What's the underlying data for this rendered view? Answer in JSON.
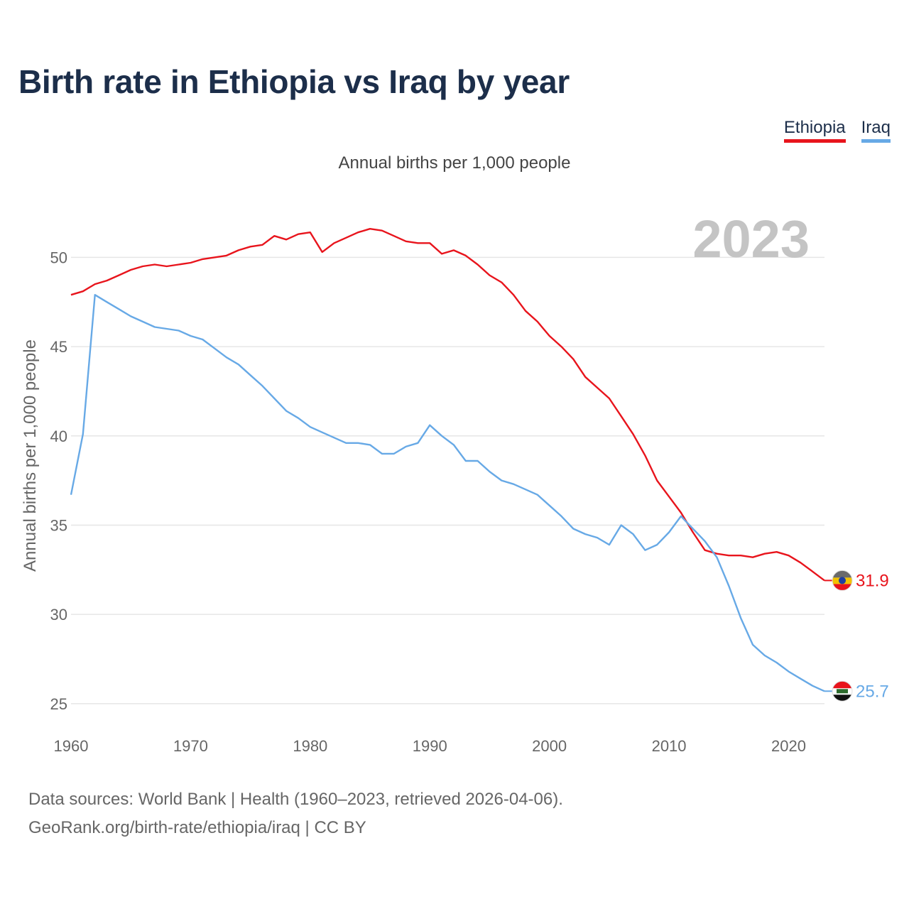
{
  "title": "Birth rate in Ethiopia vs Iraq by year",
  "subtitle": "Annual births per 1,000 people",
  "year_watermark": "2023",
  "legend": [
    {
      "label": "Ethiopia",
      "color": "#e8141c"
    },
    {
      "label": "Iraq",
      "color": "#67a9e6"
    }
  ],
  "footer": {
    "line1": "Data sources: World Bank | Health (1960–2023, retrieved 2026-04-06).",
    "line2": "GeoRank.org/birth-rate/ethiopia/iraq | CC BY"
  },
  "chart_data": {
    "type": "line",
    "title": "Birth rate in Ethiopia vs Iraq by year",
    "xlabel": "",
    "ylabel": "Annual births per 1,000 people",
    "xlim": [
      1960,
      2023
    ],
    "ylim": [
      24,
      53
    ],
    "x_ticks": [
      1960,
      1970,
      1980,
      1990,
      2000,
      2010,
      2020
    ],
    "y_ticks": [
      25,
      30,
      35,
      40,
      45,
      50
    ],
    "x": [
      1960,
      1961,
      1962,
      1963,
      1964,
      1965,
      1966,
      1967,
      1968,
      1969,
      1970,
      1971,
      1972,
      1973,
      1974,
      1975,
      1976,
      1977,
      1978,
      1979,
      1980,
      1981,
      1982,
      1983,
      1984,
      1985,
      1986,
      1987,
      1988,
      1989,
      1990,
      1991,
      1992,
      1993,
      1994,
      1995,
      1996,
      1997,
      1998,
      1999,
      2000,
      2001,
      2002,
      2003,
      2004,
      2005,
      2006,
      2007,
      2008,
      2009,
      2010,
      2011,
      2012,
      2013,
      2014,
      2015,
      2016,
      2017,
      2018,
      2019,
      2020,
      2021,
      2022,
      2023
    ],
    "series": [
      {
        "name": "Ethiopia",
        "color": "#e8141c",
        "end_label": "31.9",
        "values": [
          47.9,
          48.1,
          48.5,
          48.7,
          49.0,
          49.3,
          49.5,
          49.6,
          49.5,
          49.6,
          49.7,
          49.9,
          50.0,
          50.1,
          50.4,
          50.6,
          50.7,
          51.2,
          51.0,
          51.3,
          51.4,
          50.3,
          50.8,
          51.1,
          51.4,
          51.6,
          51.5,
          51.2,
          50.9,
          50.8,
          50.8,
          50.2,
          50.4,
          50.1,
          49.6,
          49.0,
          48.6,
          47.9,
          47.0,
          46.4,
          45.6,
          45.0,
          44.3,
          43.3,
          42.7,
          42.1,
          41.1,
          40.1,
          38.9,
          37.5,
          36.6,
          35.7,
          34.6,
          33.6,
          33.4,
          33.3,
          33.3,
          33.2,
          33.4,
          33.5,
          33.3,
          32.9,
          32.4,
          31.9
        ]
      },
      {
        "name": "Iraq",
        "color": "#67a9e6",
        "end_label": "25.7",
        "values": [
          36.7,
          40.1,
          47.9,
          47.5,
          47.1,
          46.7,
          46.4,
          46.1,
          46.0,
          45.9,
          45.6,
          45.4,
          44.9,
          44.4,
          44.0,
          43.4,
          42.8,
          42.1,
          41.4,
          41.0,
          40.5,
          40.2,
          39.9,
          39.6,
          39.6,
          39.5,
          39.0,
          39.0,
          39.4,
          39.6,
          40.6,
          40.0,
          39.5,
          38.6,
          38.6,
          38.0,
          37.5,
          37.3,
          37.0,
          36.7,
          36.1,
          35.5,
          34.8,
          34.5,
          34.3,
          33.9,
          35.0,
          34.5,
          33.6,
          33.9,
          34.6,
          35.5,
          34.8,
          34.1,
          33.2,
          31.6,
          29.8,
          28.3,
          27.7,
          27.3,
          26.8,
          26.4,
          26.0,
          25.7
        ]
      }
    ]
  }
}
